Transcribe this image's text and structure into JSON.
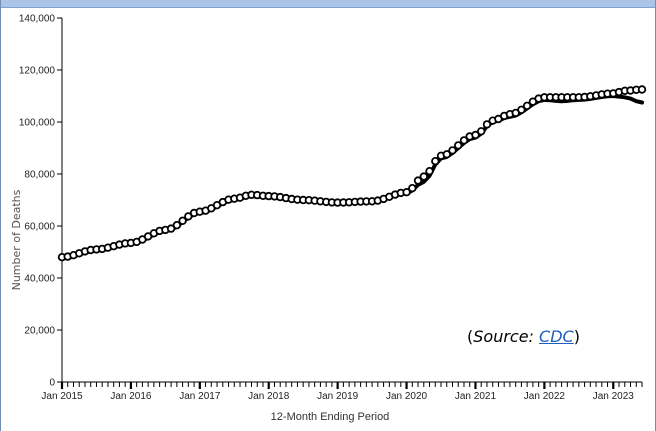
{
  "chart_data": {
    "type": "line",
    "title": "",
    "xlabel": "12-Month Ending Period",
    "ylabel": "Number of Deaths",
    "ylim": [
      0,
      140000
    ],
    "yticks": [
      0,
      20000,
      40000,
      60000,
      80000,
      100000,
      120000,
      140000
    ],
    "ytick_labels": [
      "0",
      "20,000",
      "40,000",
      "60,000",
      "80,000",
      "100,000",
      "120,000",
      "140,000"
    ],
    "xlim": [
      "2015-01",
      "2023-06"
    ],
    "xtick_labels": [
      "Jan 2015",
      "Jan 2016",
      "Jan 2017",
      "Jan 2018",
      "Jan 2019",
      "Jan 2020",
      "Jan 2021",
      "Jan 2022",
      "Jan 2023"
    ],
    "xtick_dates": [
      "2015-01",
      "2016-01",
      "2017-01",
      "2018-01",
      "2019-01",
      "2020-01",
      "2021-01",
      "2022-01",
      "2023-01"
    ],
    "grid": false,
    "legend": "none",
    "series": [
      {
        "style": "solid-line",
        "color": "#000000",
        "points": [
          [
            "2015-01",
            47500
          ],
          [
            "2015-07",
            50500
          ],
          [
            "2016-01",
            53000
          ],
          [
            "2016-07",
            58000
          ],
          [
            "2017-01",
            65000
          ],
          [
            "2017-07",
            70000
          ],
          [
            "2017-10",
            71500
          ],
          [
            "2018-01",
            71000
          ],
          [
            "2018-07",
            70000
          ],
          [
            "2019-01",
            69000
          ],
          [
            "2019-07",
            69500
          ],
          [
            "2020-01",
            72500
          ],
          [
            "2020-04",
            77000
          ],
          [
            "2020-07",
            86000
          ],
          [
            "2021-01",
            94000
          ],
          [
            "2021-04",
            100000
          ],
          [
            "2021-07",
            102000
          ],
          [
            "2022-01",
            108500
          ],
          [
            "2022-04",
            108000
          ],
          [
            "2022-07",
            108500
          ],
          [
            "2023-01",
            110000
          ],
          [
            "2023-03",
            109500
          ],
          [
            "2023-06",
            107500
          ]
        ]
      },
      {
        "style": "open-circle-markers",
        "color": "#000000",
        "points": [
          [
            "2015-01",
            48000
          ],
          [
            "2015-07",
            51000
          ],
          [
            "2016-01",
            53500
          ],
          [
            "2016-07",
            58500
          ],
          [
            "2017-01",
            65500
          ],
          [
            "2017-07",
            70500
          ],
          [
            "2017-10",
            72000
          ],
          [
            "2018-01",
            71500
          ],
          [
            "2018-07",
            70000
          ],
          [
            "2019-01",
            69000
          ],
          [
            "2019-07",
            69500
          ],
          [
            "2020-01",
            73000
          ],
          [
            "2020-04",
            79000
          ],
          [
            "2020-07",
            87000
          ],
          [
            "2021-01",
            95000
          ],
          [
            "2021-04",
            100500
          ],
          [
            "2021-07",
            103000
          ],
          [
            "2022-01",
            109500
          ],
          [
            "2022-04",
            109500
          ],
          [
            "2022-07",
            109500
          ],
          [
            "2023-01",
            111000
          ],
          [
            "2023-03",
            112000
          ],
          [
            "2023-06",
            112500
          ]
        ]
      }
    ],
    "annotation": {
      "prefix": "(",
      "label": "Source: ",
      "link_text": "CDC",
      "suffix": ")",
      "link_color": "#1f5fbf"
    }
  }
}
